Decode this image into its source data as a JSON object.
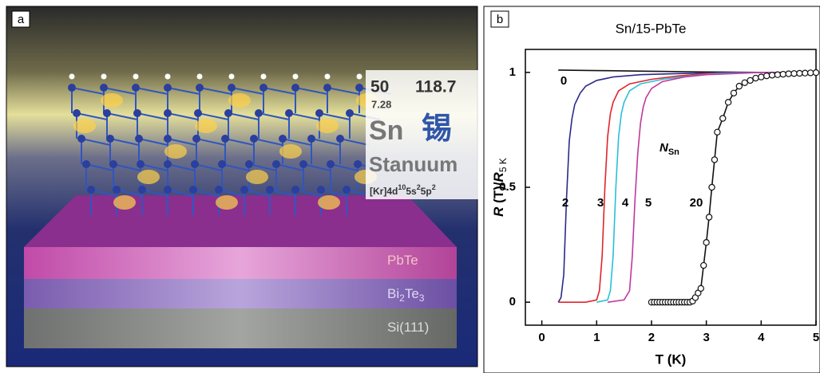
{
  "panel_a": {
    "label": "a",
    "element": {
      "number": "50",
      "mass": "118.7",
      "density": "7.28",
      "symbol": "Sn",
      "chinese_name": "锡",
      "latin_name": "Stanuum",
      "configuration": [
        "[Kr]4d",
        "10",
        "5s",
        "2",
        "5p",
        "2"
      ]
    },
    "layers": [
      {
        "parts": [
          "PbTe"
        ]
      },
      {
        "parts": [
          "Bi",
          "2",
          "Te",
          "3"
        ]
      },
      {
        "parts": [
          "Si(111)"
        ]
      }
    ]
  },
  "panel_b": {
    "label": "b",
    "chart_data": {
      "type": "line",
      "title": "Sn/15-PbTe",
      "x_label": "T (K)",
      "y_label": [
        "R",
        " (T)/",
        "R",
        "5 K"
      ],
      "annotation": [
        "N",
        "Sn"
      ],
      "xlim": [
        -0.3,
        5
      ],
      "ylim": [
        -0.1,
        1.1
      ],
      "xticks": [
        0,
        1,
        2,
        3,
        4,
        5
      ],
      "yticks": [
        0,
        0.5,
        1
      ],
      "series": [
        {
          "name": "0",
          "color": "#111111",
          "x": [
            0.3,
            1,
            2,
            3,
            4,
            5
          ],
          "values": [
            1.01,
            1.008,
            1.005,
            1.002,
            1,
            1
          ]
        },
        {
          "name": "2",
          "color": "#2b2a8c",
          "x": [
            0.3,
            0.35,
            0.4,
            0.45,
            0.5,
            0.55,
            0.6,
            0.7,
            0.8,
            1.0,
            1.3,
            1.8,
            2.5,
            3.5,
            4.5
          ],
          "values": [
            0,
            0.02,
            0.12,
            0.45,
            0.7,
            0.8,
            0.86,
            0.91,
            0.94,
            0.965,
            0.98,
            0.99,
            0.995,
            1,
            1
          ]
        },
        {
          "name": "3",
          "color": "#e0242c",
          "x": [
            0.3,
            0.8,
            1.0,
            1.05,
            1.1,
            1.15,
            1.2,
            1.25,
            1.3,
            1.4,
            1.6,
            2.0,
            2.5,
            3.0,
            4.0,
            5.0
          ],
          "values": [
            0,
            0,
            0.01,
            0.05,
            0.2,
            0.5,
            0.72,
            0.82,
            0.87,
            0.92,
            0.95,
            0.97,
            0.985,
            0.995,
            1,
            1
          ]
        },
        {
          "name": "4",
          "color": "#28c0d8",
          "x": [
            1.0,
            1.2,
            1.25,
            1.3,
            1.35,
            1.4,
            1.45,
            1.5,
            1.6,
            1.8,
            2.2,
            2.7,
            3.2,
            4.0,
            5.0
          ],
          "values": [
            0,
            0.01,
            0.05,
            0.2,
            0.5,
            0.72,
            0.82,
            0.87,
            0.92,
            0.95,
            0.97,
            0.985,
            0.995,
            1,
            1
          ]
        },
        {
          "name": "5",
          "color": "#c0389c",
          "x": [
            1.2,
            1.5,
            1.6,
            1.65,
            1.7,
            1.75,
            1.8,
            1.85,
            1.9,
            2.0,
            2.2,
            2.6,
            3.0,
            3.5,
            4.0,
            5.0
          ],
          "values": [
            0,
            0.01,
            0.05,
            0.2,
            0.45,
            0.65,
            0.78,
            0.85,
            0.89,
            0.93,
            0.96,
            0.98,
            0.99,
            0.995,
            1,
            1
          ]
        },
        {
          "name": "20",
          "color": "#111111",
          "marker": "circle",
          "x": [
            2.0,
            2.05,
            2.1,
            2.15,
            2.2,
            2.25,
            2.3,
            2.35,
            2.4,
            2.45,
            2.5,
            2.55,
            2.6,
            2.65,
            2.7,
            2.75,
            2.8,
            2.85,
            2.9,
            2.95,
            3.0,
            3.05,
            3.1,
            3.15,
            3.2,
            3.3,
            3.4,
            3.5,
            3.6,
            3.7,
            3.8,
            3.9,
            4.0,
            4.1,
            4.2,
            4.3,
            4.4,
            4.5,
            4.6,
            4.7,
            4.8,
            4.9,
            5.0
          ],
          "values": [
            0,
            0,
            0,
            0,
            0,
            0,
            0,
            0,
            0,
            0,
            0,
            0,
            0,
            0,
            0,
            0.005,
            0.02,
            0.04,
            0.06,
            0.16,
            0.26,
            0.37,
            0.5,
            0.62,
            0.74,
            0.8,
            0.87,
            0.91,
            0.94,
            0.955,
            0.965,
            0.975,
            0.98,
            0.985,
            0.988,
            0.99,
            0.992,
            0.994,
            0.995,
            0.996,
            0.997,
            0.998,
            0.999
          ]
        }
      ]
    }
  }
}
